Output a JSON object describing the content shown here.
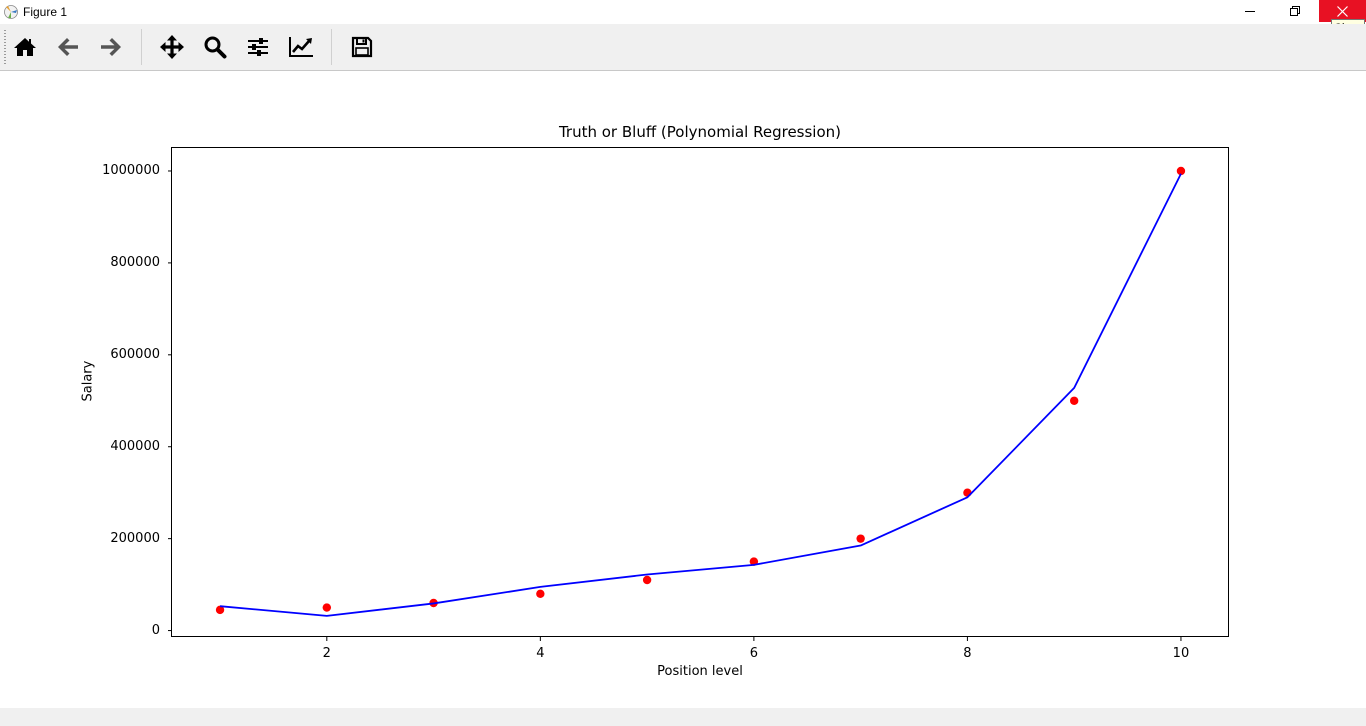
{
  "window": {
    "title": "Figure 1",
    "tooltip": "Close",
    "controls": [
      "minimize-icon",
      "maximize-icon",
      "close-icon"
    ],
    "close_color": "#e81123"
  },
  "toolbar": {
    "buttons": [
      {
        "name": "home",
        "icon": "home-icon"
      },
      {
        "name": "back",
        "icon": "arrow-left-icon"
      },
      {
        "name": "forward",
        "icon": "arrow-right-icon"
      },
      {
        "name": "pan",
        "icon": "move-icon"
      },
      {
        "name": "zoom",
        "icon": "magnifier-icon"
      },
      {
        "name": "configure-subplots",
        "icon": "sliders-icon"
      },
      {
        "name": "edit-axis",
        "icon": "line-chart-icon"
      },
      {
        "name": "save",
        "icon": "floppy-disk-icon"
      }
    ]
  },
  "chart_data": {
    "type": "scatter",
    "title": "Truth or Bluff (Polynomial Regression)",
    "xlabel": "Position level",
    "ylabel": "Salary",
    "xlim": [
      0.55,
      10.45
    ],
    "ylim": [
      -14000,
      1050000
    ],
    "xticks": [
      2,
      4,
      6,
      8,
      10
    ],
    "xtick_labels": [
      "2",
      "4",
      "6",
      "8",
      "10"
    ],
    "yticks": [
      0,
      200000,
      400000,
      600000,
      800000,
      1000000
    ],
    "ytick_labels": [
      "0",
      "200000",
      "400000",
      "600000",
      "800000",
      "1000000"
    ],
    "grid": false,
    "series": [
      {
        "kind": "scatter",
        "color": "#ff0000",
        "x": [
          1,
          2,
          3,
          4,
          5,
          6,
          7,
          8,
          9,
          10
        ],
        "y": [
          45000,
          50000,
          60000,
          80000,
          110000,
          150000,
          200000,
          300000,
          500000,
          1000000
        ]
      },
      {
        "kind": "line",
        "color": "#0000ff",
        "x": [
          1,
          2,
          3,
          4,
          5,
          6,
          7,
          8,
          9,
          10
        ],
        "y": [
          53000,
          32000,
          59000,
          95000,
          122000,
          143000,
          185000,
          290000,
          528000,
          994000
        ]
      }
    ]
  }
}
